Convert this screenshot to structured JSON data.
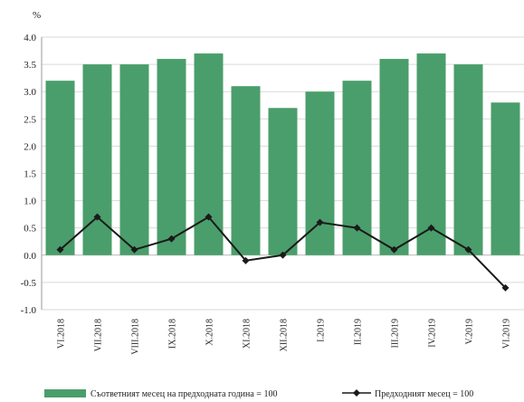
{
  "chart_data": {
    "type": "bar",
    "unit": "%",
    "categories": [
      "VI.2018",
      "VII.2018",
      "VIII.2018",
      "IX.2018",
      "X.2018",
      "XI.2018",
      "XII.2018",
      "I.2019",
      "II.2019",
      "III.2019",
      "IV.2019",
      "V.2019",
      "VI.2019"
    ],
    "series": [
      {
        "name": "Съответният месец на предходната година = 100",
        "type": "bar",
        "color": "#4a9e6b",
        "values": [
          3.2,
          3.5,
          3.5,
          3.6,
          3.7,
          3.1,
          2.7,
          3.0,
          3.2,
          3.6,
          3.7,
          3.5,
          2.8
        ]
      },
      {
        "name": "Предходният месец = 100",
        "type": "line",
        "color": "#1a1a1a",
        "values": [
          0.1,
          0.7,
          0.1,
          0.3,
          0.7,
          -0.1,
          0.0,
          0.6,
          0.5,
          0.1,
          0.5,
          0.1,
          -0.6
        ]
      }
    ],
    "ylim": [
      -1.0,
      4.0
    ],
    "yticks": [
      "4.0",
      "3.5",
      "3.0",
      "2.5",
      "2.0",
      "1.5",
      "1.0",
      "0.5",
      "0.0",
      "-0.5",
      "-1.0"
    ],
    "grid": true,
    "legend_position": "bottom"
  }
}
